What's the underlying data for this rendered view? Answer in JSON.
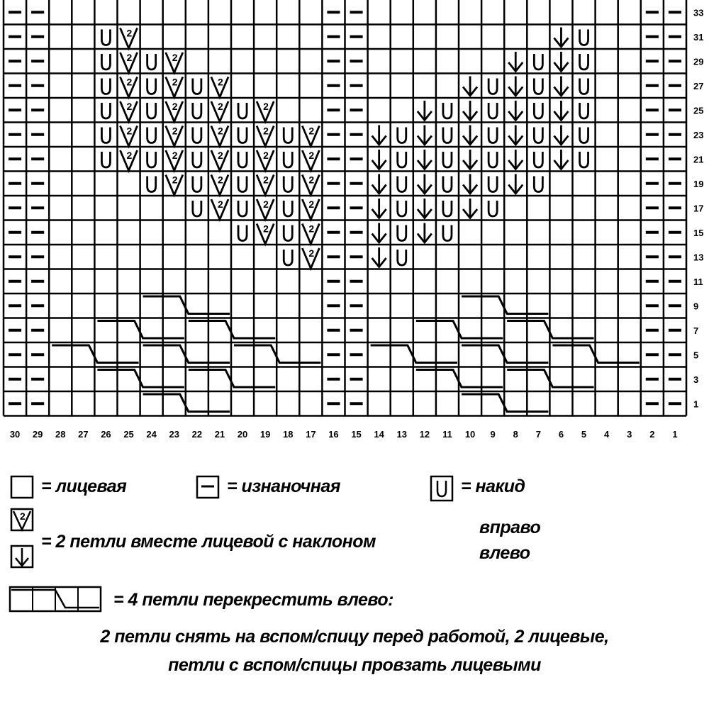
{
  "chart_data": {
    "type": "knitting-chart",
    "columns": 30,
    "column_labels": [
      "30",
      "29",
      "28",
      "27",
      "26",
      "25",
      "24",
      "23",
      "22",
      "21",
      "20",
      "19",
      "18",
      "17",
      "16",
      "15",
      "14",
      "13",
      "12",
      "11",
      "10",
      "9",
      "8",
      "7",
      "6",
      "5",
      "4",
      "3",
      "2",
      "1"
    ],
    "row_labels": [
      "33",
      "31",
      "29",
      "27",
      "25",
      "23",
      "21",
      "19",
      "17",
      "15",
      "13",
      "11",
      "9",
      "7",
      "5",
      "3",
      "1"
    ],
    "symbol_key": {
      "-": "purl",
      ".": "knit",
      "U": "yarn-over",
      "R": "k2tog-right",
      "L": "k2tog-left"
    },
    "rows": [
      "--............--............--",
      "--..UR........--........LU..--",
      "--..URUR......--......LULU..--",
      "--..URURUR....--....LULULU..--",
      "--..URURURUR..--..LULULULU..--",
      "--..URURURURUR--LULULULULU..--",
      "--..URURURURUR--LULULULULU..--",
      "--....URURURUR--LULULULU....--",
      "--......URURUR--LULULU......--",
      "--........URUR--LULU........--",
      "--..........UR--LU..........--",
      "--............--............--",
      "--............--............--",
      "--............--............--",
      "--............--............--",
      "--............--............--",
      "--............--............--"
    ],
    "cables": [
      {
        "row": "9",
        "from_col": 24,
        "to_col": 21
      },
      {
        "row": "9",
        "from_col": 10,
        "to_col": 7
      },
      {
        "row": "7",
        "from_col": 26,
        "to_col": 23
      },
      {
        "row": "7",
        "from_col": 22,
        "to_col": 19
      },
      {
        "row": "7",
        "from_col": 12,
        "to_col": 9
      },
      {
        "row": "7",
        "from_col": 8,
        "to_col": 5
      },
      {
        "row": "5",
        "from_col": 28,
        "to_col": 25
      },
      {
        "row": "5",
        "from_col": 24,
        "to_col": 21
      },
      {
        "row": "5",
        "from_col": 20,
        "to_col": 17
      },
      {
        "row": "5",
        "from_col": 14,
        "to_col": 11
      },
      {
        "row": "5",
        "from_col": 10,
        "to_col": 7
      },
      {
        "row": "5",
        "from_col": 6,
        "to_col": 3
      },
      {
        "row": "3",
        "from_col": 26,
        "to_col": 23
      },
      {
        "row": "3",
        "from_col": 22,
        "to_col": 19
      },
      {
        "row": "3",
        "from_col": 12,
        "to_col": 9
      },
      {
        "row": "3",
        "from_col": 8,
        "to_col": 5
      },
      {
        "row": "1",
        "from_col": 24,
        "to_col": 21
      },
      {
        "row": "1",
        "from_col": 10,
        "to_col": 7
      }
    ]
  },
  "legend": {
    "knit": "= лицевая",
    "purl": "= изнаночная",
    "yarn_over": "= накид",
    "decrease": "= 2 петли вместе лицевой с наклоном",
    "right": "вправо",
    "left": "влево",
    "cable": "= 4 петли перекрестить влево:",
    "cable_line1": "2 петли снять на вспом/спицу перед работой, 2 лицевые,",
    "cable_line2": "петли с вспом/спицы провзать лицевыми",
    "decrease_number": "2"
  }
}
